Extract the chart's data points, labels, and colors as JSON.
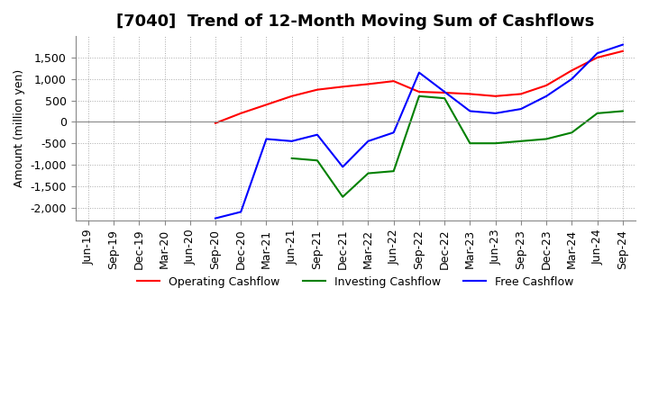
{
  "title": "[7040]  Trend of 12-Month Moving Sum of Cashflows",
  "ylabel": "Amount (million yen)",
  "x_labels": [
    "Jun-19",
    "Sep-19",
    "Dec-19",
    "Mar-20",
    "Jun-20",
    "Sep-20",
    "Dec-20",
    "Mar-21",
    "Jun-21",
    "Sep-21",
    "Dec-21",
    "Mar-22",
    "Jun-22",
    "Sep-22",
    "Dec-22",
    "Mar-23",
    "Jun-23",
    "Sep-23",
    "Dec-23",
    "Mar-24",
    "Jun-24",
    "Sep-24"
  ],
  "operating_cashflow": [
    null,
    null,
    null,
    null,
    null,
    -30,
    200,
    400,
    600,
    750,
    820,
    880,
    950,
    700,
    680,
    650,
    600,
    650,
    850,
    1200,
    1500,
    1650
  ],
  "investing_cashflow": [
    null,
    null,
    null,
    null,
    null,
    null,
    null,
    null,
    -850,
    -900,
    -1750,
    -1200,
    -1150,
    600,
    550,
    -500,
    -500,
    -450,
    -400,
    -250,
    200,
    250
  ],
  "free_cashflow": [
    null,
    null,
    null,
    null,
    null,
    -2250,
    -2100,
    -400,
    -450,
    -300,
    -1050,
    -450,
    -250,
    1150,
    700,
    250,
    200,
    300,
    600,
    1000,
    1600,
    1800
  ],
  "operating_color": "#ff0000",
  "investing_color": "#008000",
  "free_color": "#0000ff",
  "ylim": [
    -2300,
    2000
  ],
  "yticks": [
    -2000,
    -1500,
    -1000,
    -500,
    0,
    500,
    1000,
    1500
  ],
  "background_color": "#ffffff",
  "grid_color": "#aaaaaa",
  "title_fontsize": 13,
  "label_fontsize": 9,
  "tick_fontsize": 9,
  "line_width": 1.5
}
